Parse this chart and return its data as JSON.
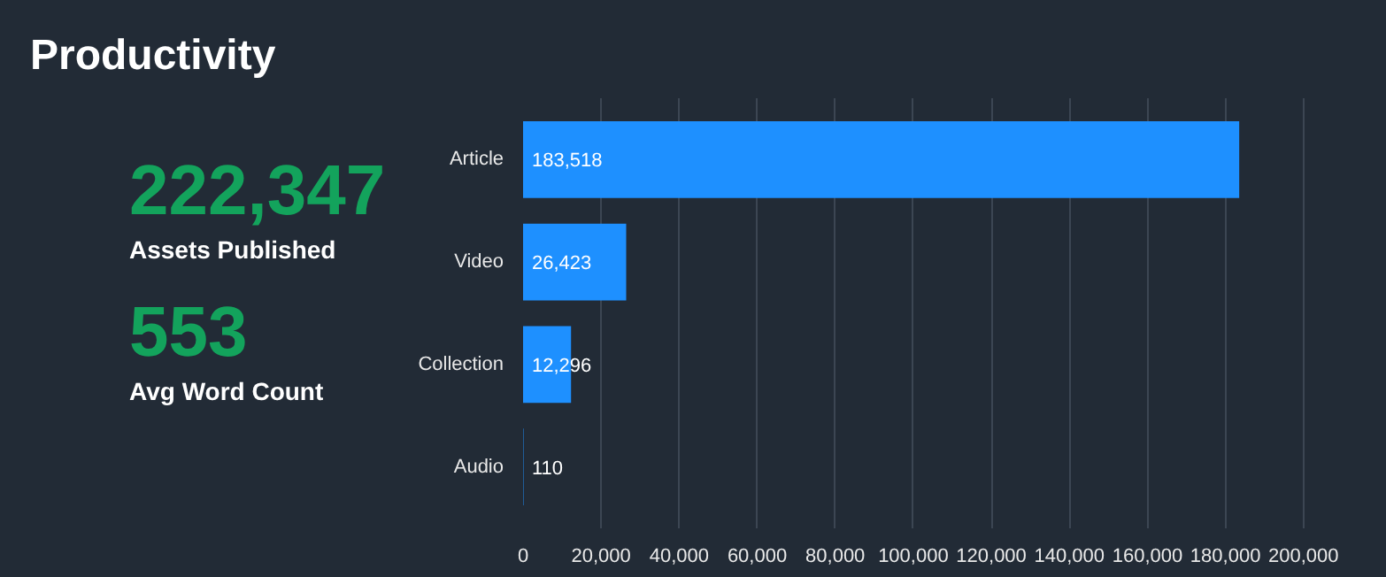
{
  "chart_data": [
    {
      "type": "other",
      "title": "Productivity",
      "annotations": [
        "222,347",
        "Assets Published",
        "553",
        "Avg Word Count"
      ]
    },
    {
      "type": "bar",
      "orientation": "horizontal",
      "categories": [
        "Article",
        "Video",
        "Collection",
        "Audio"
      ],
      "values": [
        183518,
        26423,
        12296,
        110
      ],
      "value_labels": [
        "183,518",
        "26,423",
        "12,296",
        "110"
      ],
      "color": "#1e90ff",
      "xlim": [
        0,
        220000
      ],
      "xticks": [
        0,
        {
          "value": 20000,
          "label": "20,000"
        },
        {
          "value": 40000,
          "label": "40,000"
        },
        {
          "value": 60000,
          "label": "60,000"
        },
        {
          "value": 80000,
          "label": "80,000"
        },
        {
          "value": 100000,
          "label": "100,000"
        },
        {
          "value": 120000,
          "label": "120,000"
        },
        {
          "value": 140000,
          "label": "140,000"
        },
        {
          "value": 160000,
          "label": "160,000"
        },
        {
          "value": 180000,
          "label": "180,000"
        },
        {
          "value": 200000,
          "label": "200,000"
        }
      ],
      "grid": "x"
    }
  ]
}
